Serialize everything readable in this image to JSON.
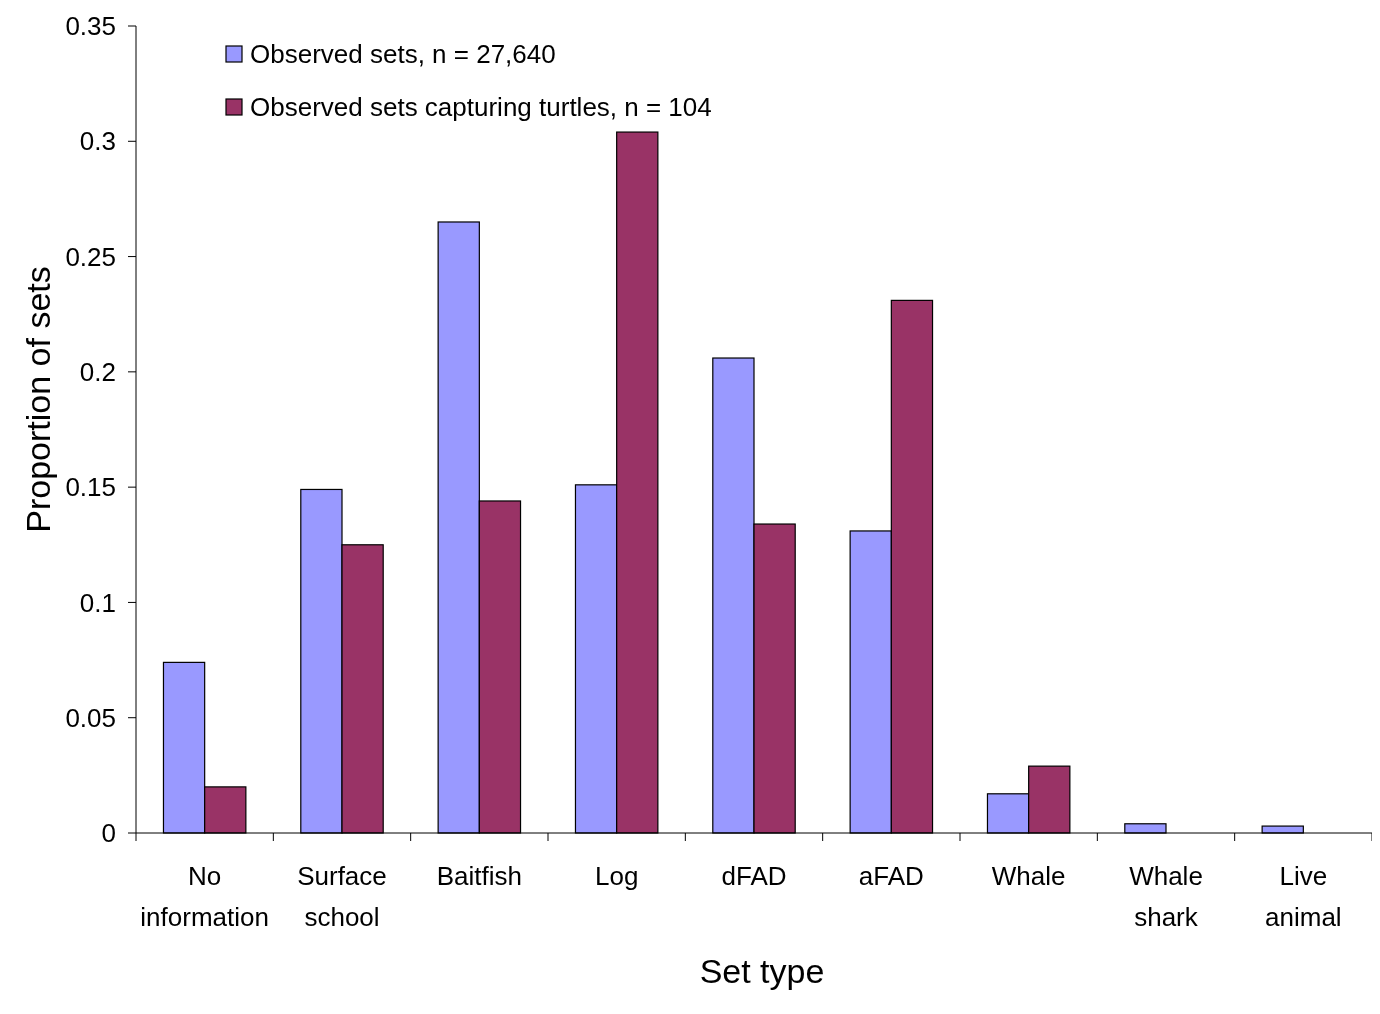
{
  "chart_data": {
    "type": "bar",
    "xlabel": "Set type",
    "ylabel": "Proportion of sets",
    "categories": [
      "No information",
      "Surface school",
      "Baitfish",
      "Log",
      "dFAD",
      "aFAD",
      "Whale",
      "Whale shark",
      "Live animal"
    ],
    "series": [
      {
        "name": "Observed sets, n = 27,640",
        "color": "#9999ff",
        "values": [
          0.074,
          0.149,
          0.265,
          0.151,
          0.206,
          0.131,
          0.017,
          0.004,
          0.003
        ]
      },
      {
        "name": "Observed sets capturing turtles, n = 104",
        "color": "#993366",
        "values": [
          0.02,
          0.125,
          0.144,
          0.304,
          0.134,
          0.231,
          0.029,
          0,
          0
        ]
      }
    ],
    "ylim": [
      0,
      0.35
    ],
    "yticks": [
      0,
      0.05,
      0.1,
      0.15,
      0.2,
      0.25,
      0.3,
      0.35
    ],
    "grid": false,
    "legend": "top left"
  }
}
